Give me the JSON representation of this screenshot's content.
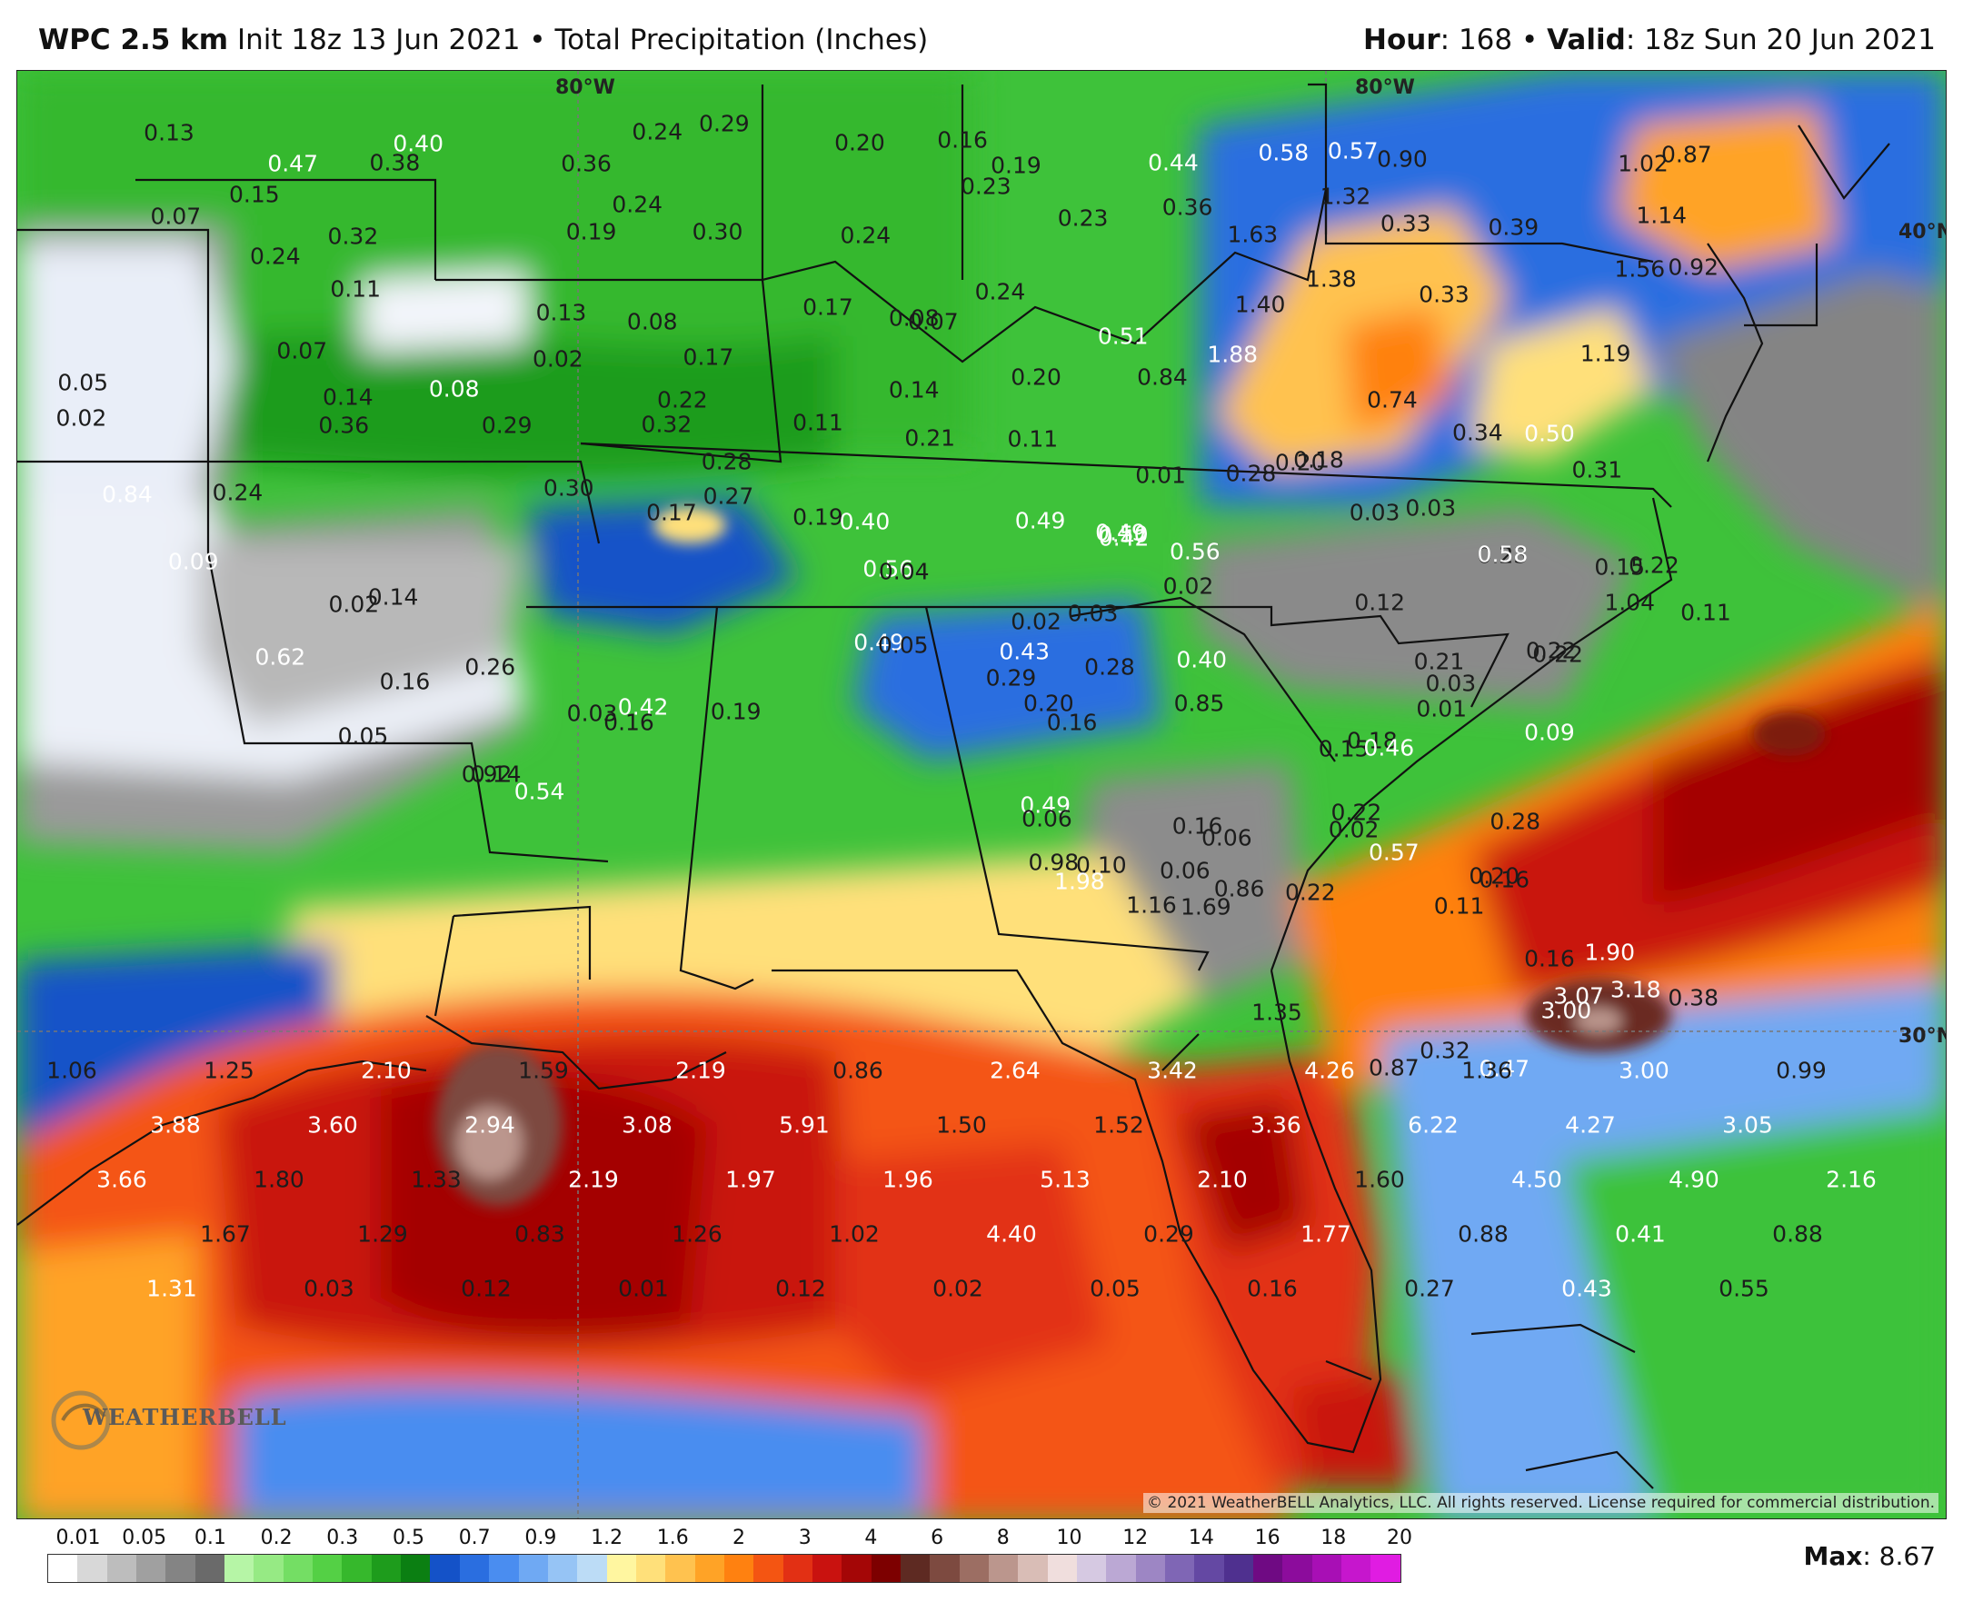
{
  "header": {
    "model": "WPC 2.5 km",
    "init": "Init 18z 13 Jun 2021",
    "separator": "•",
    "field": "Total Precipitation (Inches)",
    "hour_label": "Hour",
    "hour": ": 168",
    "valid_label": "Valid",
    "valid": ": 18z Sun 20 Jun 2021"
  },
  "map": {
    "grid_labels": {
      "lon_top_left": "80°W",
      "lon_top_right": "80°W",
      "lat_40": "40°N",
      "lat_30": "30°N"
    },
    "copyright": "© 2021 WeatherBELL Analytics, LLC. All rights reserved. License required for commercial distribution.",
    "logo_text": "WEATHERBELL",
    "precip_values": [
      {
        "v": "0.13",
        "w": false
      },
      {
        "v": "0.47",
        "w": true
      },
      {
        "v": "0.40",
        "w": true
      },
      {
        "v": "0.38",
        "w": false
      },
      {
        "v": "0.36",
        "w": false
      },
      {
        "v": "0.24",
        "w": false
      },
      {
        "v": "0.29",
        "w": false
      },
      {
        "v": "0.20",
        "w": false
      },
      {
        "v": "0.16",
        "w": false
      },
      {
        "v": "0.19",
        "w": false
      },
      {
        "v": "0.23",
        "w": false
      },
      {
        "v": "0.44",
        "w": true
      },
      {
        "v": "0.36",
        "w": false
      },
      {
        "v": "0.58",
        "w": true
      },
      {
        "v": "0.57",
        "w": true
      },
      {
        "v": "0.90",
        "w": false
      },
      {
        "v": "1.02",
        "w": false
      },
      {
        "v": "0.87",
        "w": false
      },
      {
        "v": "0.15",
        "w": false
      },
      {
        "v": "0.07",
        "w": false
      },
      {
        "v": "0.32",
        "w": false
      },
      {
        "v": "0.19",
        "w": false
      },
      {
        "v": "0.24",
        "w": false
      },
      {
        "v": "0.30",
        "w": false
      },
      {
        "v": "0.24",
        "w": false
      },
      {
        "v": "0.23",
        "w": false
      },
      {
        "v": "1.32",
        "w": false
      },
      {
        "v": "0.33",
        "w": false
      },
      {
        "v": "0.39",
        "w": false
      },
      {
        "v": "1.14",
        "w": false
      },
      {
        "v": "1.63",
        "w": false
      },
      {
        "v": "0.24",
        "w": false
      },
      {
        "v": "0.11",
        "w": false
      },
      {
        "v": "0.13",
        "w": false
      },
      {
        "v": "0.08",
        "w": false
      },
      {
        "v": "0.17",
        "w": false
      },
      {
        "v": "0.08",
        "w": false
      },
      {
        "v": "0.07",
        "w": false
      },
      {
        "v": "0.24",
        "w": false
      },
      {
        "v": "1.40",
        "w": false
      },
      {
        "v": "1.38",
        "w": false
      },
      {
        "v": "0.33",
        "w": false
      },
      {
        "v": "1.56",
        "w": false
      },
      {
        "v": "0.92",
        "w": false
      },
      {
        "v": "0.07",
        "w": false
      },
      {
        "v": "0.02",
        "w": false
      },
      {
        "v": "0.17",
        "w": false
      },
      {
        "v": "0.51",
        "w": true
      },
      {
        "v": "1.88",
        "w": true
      },
      {
        "v": "1.19",
        "w": false
      },
      {
        "v": "0.05",
        "w": false
      },
      {
        "v": "0.14",
        "w": false
      },
      {
        "v": "0.08",
        "w": true
      },
      {
        "v": "0.22",
        "w": false
      },
      {
        "v": "0.14",
        "w": false
      },
      {
        "v": "0.20",
        "w": false
      },
      {
        "v": "0.84",
        "w": false
      },
      {
        "v": "0.74",
        "w": false
      },
      {
        "v": "0.02",
        "w": false
      },
      {
        "v": "0.36",
        "w": false
      },
      {
        "v": "0.29",
        "w": false
      },
      {
        "v": "0.32",
        "w": false
      },
      {
        "v": "0.11",
        "w": false
      },
      {
        "v": "0.21",
        "w": false
      },
      {
        "v": "0.11",
        "w": false
      },
      {
        "v": "0.28",
        "w": false
      },
      {
        "v": "0.18",
        "w": false
      },
      {
        "v": "0.50",
        "w": true
      },
      {
        "v": "0.31",
        "w": false
      },
      {
        "v": "0.30",
        "w": false
      },
      {
        "v": "0.28",
        "w": false
      },
      {
        "v": "0.27",
        "w": false
      },
      {
        "v": "0.01",
        "w": false
      },
      {
        "v": "0.20",
        "w": false
      },
      {
        "v": "0.34",
        "w": false
      },
      {
        "v": "0.84",
        "w": true
      },
      {
        "v": "0.24",
        "w": false
      },
      {
        "v": "0.17",
        "w": false
      },
      {
        "v": "0.19",
        "w": false
      },
      {
        "v": "0.40",
        "w": true
      },
      {
        "v": "0.49",
        "w": true
      },
      {
        "v": "0.49",
        "w": true
      },
      {
        "v": "0.50",
        "w": true
      },
      {
        "v": "0.56",
        "w": true
      },
      {
        "v": "0.04",
        "w": false
      },
      {
        "v": "0.02",
        "w": false
      },
      {
        "v": "0.42",
        "w": true
      },
      {
        "v": "0.56",
        "w": true
      },
      {
        "v": "0.03",
        "w": false
      },
      {
        "v": "0.03",
        "w": false
      },
      {
        "v": "0.23",
        "w": false
      },
      {
        "v": "0.58",
        "w": true
      },
      {
        "v": "0.22",
        "w": false
      },
      {
        "v": "0.15",
        "w": false
      },
      {
        "v": "0.09",
        "w": true
      },
      {
        "v": "0.02",
        "w": false
      },
      {
        "v": "0.02",
        "w": false
      },
      {
        "v": "0.14",
        "w": false
      },
      {
        "v": "0.62",
        "w": true
      },
      {
        "v": "0.49",
        "w": true
      },
      {
        "v": "0.05",
        "w": false
      },
      {
        "v": "0.43",
        "w": true
      },
      {
        "v": "0.03",
        "w": false
      },
      {
        "v": "0.28",
        "w": false
      },
      {
        "v": "0.40",
        "w": true
      },
      {
        "v": "0.12",
        "w": false
      },
      {
        "v": "0.22",
        "w": false
      },
      {
        "v": "1.04",
        "w": false
      },
      {
        "v": "0.11",
        "w": false
      },
      {
        "v": "0.21",
        "w": false
      },
      {
        "v": "0.03",
        "w": false
      },
      {
        "v": "0.22",
        "w": false
      },
      {
        "v": "0.26",
        "w": false
      },
      {
        "v": "0.16",
        "w": false
      },
      {
        "v": "0.42",
        "w": true
      },
      {
        "v": "0.20",
        "w": false
      },
      {
        "v": "0.85",
        "w": false
      },
      {
        "v": "0.03",
        "w": false
      },
      {
        "v": "0.16",
        "w": false
      },
      {
        "v": "0.19",
        "w": false
      },
      {
        "v": "0.29",
        "w": false
      },
      {
        "v": "0.01",
        "w": false
      },
      {
        "v": "0.09",
        "w": true
      },
      {
        "v": "0.05",
        "w": false
      },
      {
        "v": "0.16",
        "w": false
      },
      {
        "v": "0.18",
        "w": false
      },
      {
        "v": "0.15",
        "w": false
      },
      {
        "v": "0.46",
        "w": true
      },
      {
        "v": "0.49",
        "w": true
      },
      {
        "v": "0.22",
        "w": false
      },
      {
        "v": "0.38",
        "w": false
      },
      {
        "v": "0.14",
        "w": false
      },
      {
        "v": "0.92",
        "w": false
      },
      {
        "v": "0.54",
        "w": true
      },
      {
        "v": "0.06",
        "w": false
      },
      {
        "v": "0.16",
        "w": false
      },
      {
        "v": "0.06",
        "w": false
      },
      {
        "v": "0.02",
        "w": false
      },
      {
        "v": "0.28",
        "w": false
      },
      {
        "v": "0.98",
        "w": false
      },
      {
        "v": "0.10",
        "w": false
      },
      {
        "v": "0.06",
        "w": false
      },
      {
        "v": "0.86",
        "w": false
      },
      {
        "v": "0.22",
        "w": false
      },
      {
        "v": "0.57",
        "w": true
      },
      {
        "v": "0.20",
        "w": false
      },
      {
        "v": "0.11",
        "w": false
      },
      {
        "v": "0.16",
        "w": false
      },
      {
        "v": "0.16",
        "w": false
      },
      {
        "v": "1.90",
        "w": true
      },
      {
        "v": "1.98",
        "w": true
      },
      {
        "v": "1.16",
        "w": false
      },
      {
        "v": "1.69",
        "w": false
      },
      {
        "v": "1.35",
        "w": false
      },
      {
        "v": "0.87",
        "w": false
      },
      {
        "v": "0.32",
        "w": false
      },
      {
        "v": "0.47",
        "w": true
      },
      {
        "v": "3.00",
        "w": true
      },
      {
        "v": "3.07",
        "w": true
      },
      {
        "v": "3.18",
        "w": true
      },
      {
        "v": "1.06",
        "w": false
      },
      {
        "v": "1.25",
        "w": false
      },
      {
        "v": "2.10",
        "w": true
      },
      {
        "v": "1.59",
        "w": false
      },
      {
        "v": "2.19",
        "w": true
      },
      {
        "v": "0.86",
        "w": false
      },
      {
        "v": "2.64",
        "w": true
      },
      {
        "v": "3.42",
        "w": true
      },
      {
        "v": "4.26",
        "w": true
      },
      {
        "v": "1.36",
        "w": false
      },
      {
        "v": "3.00",
        "w": true
      },
      {
        "v": "0.99",
        "w": false
      },
      {
        "v": "3.88",
        "w": true
      },
      {
        "v": "3.60",
        "w": true
      },
      {
        "v": "2.94",
        "w": true
      },
      {
        "v": "3.08",
        "w": true
      },
      {
        "v": "5.91",
        "w": true
      },
      {
        "v": "1.50",
        "w": false
      },
      {
        "v": "1.52",
        "w": false
      },
      {
        "v": "3.36",
        "w": true
      },
      {
        "v": "6.22",
        "w": true
      },
      {
        "v": "4.27",
        "w": true
      },
      {
        "v": "3.05",
        "w": true
      },
      {
        "v": "3.66",
        "w": true
      },
      {
        "v": "1.80",
        "w": false
      },
      {
        "v": "1.33",
        "w": false
      },
      {
        "v": "2.19",
        "w": true
      },
      {
        "v": "1.97",
        "w": true
      },
      {
        "v": "1.96",
        "w": true
      },
      {
        "v": "5.13",
        "w": true
      },
      {
        "v": "2.10",
        "w": true
      },
      {
        "v": "1.60",
        "w": false
      },
      {
        "v": "4.50",
        "w": true
      },
      {
        "v": "4.90",
        "w": true
      },
      {
        "v": "2.16",
        "w": true
      },
      {
        "v": "1.67",
        "w": false
      },
      {
        "v": "1.29",
        "w": false
      },
      {
        "v": "0.83",
        "w": false
      },
      {
        "v": "1.26",
        "w": false
      },
      {
        "v": "1.02",
        "w": false
      },
      {
        "v": "4.40",
        "w": true
      },
      {
        "v": "0.29",
        "w": false
      },
      {
        "v": "1.77",
        "w": true
      },
      {
        "v": "0.88",
        "w": false
      },
      {
        "v": "0.41",
        "w": true
      },
      {
        "v": "0.88",
        "w": false
      },
      {
        "v": "1.31",
        "w": true
      },
      {
        "v": "0.03",
        "w": false
      },
      {
        "v": "0.12",
        "w": false
      },
      {
        "v": "0.01",
        "w": false
      },
      {
        "v": "0.12",
        "w": false
      },
      {
        "v": "0.02",
        "w": false
      },
      {
        "v": "0.05",
        "w": false
      },
      {
        "v": "0.16",
        "w": false
      },
      {
        "v": "0.27",
        "w": false
      },
      {
        "v": "0.43",
        "w": true
      },
      {
        "v": "0.55",
        "w": false
      }
    ]
  },
  "legend": {
    "ticks": [
      "0.01",
      "0.05",
      "0.1",
      "0.2",
      "0.3",
      "0.5",
      "0.7",
      "0.9",
      "1.2",
      "1.6",
      "2",
      "3",
      "4",
      "6",
      "8",
      "10",
      "12",
      "14",
      "16",
      "18",
      "20"
    ],
    "colors": [
      "#ffffff",
      "#d8d8d8",
      "#bdbdbd",
      "#a0a0a0",
      "#848484",
      "#6a6a6a",
      "#b6f5a6",
      "#96ea84",
      "#74de64",
      "#54d045",
      "#36b82c",
      "#1e9c1c",
      "#0b7f12",
      "#1452c8",
      "#2a6ee0",
      "#4a8df0",
      "#6fa9f3",
      "#96c4f5",
      "#bcdcf6",
      "#fff6a0",
      "#ffe07a",
      "#ffc24f",
      "#ffa326",
      "#ff8110",
      "#f45512",
      "#e23014",
      "#c9120f",
      "#a40606",
      "#7d0000",
      "#5e2a22",
      "#7d4a40",
      "#9c6e63",
      "#bb968d",
      "#d9bdb6",
      "#f0dedd",
      "#d6c9e2",
      "#bba8d4",
      "#9d86c4",
      "#7f66b5",
      "#6448a3",
      "#4f308f",
      "#6f0a83",
      "#8c0c9c",
      "#a80fb5",
      "#c616cd",
      "#e01ce2"
    ]
  },
  "max": {
    "label": "Max",
    "value": ": 8.67"
  }
}
